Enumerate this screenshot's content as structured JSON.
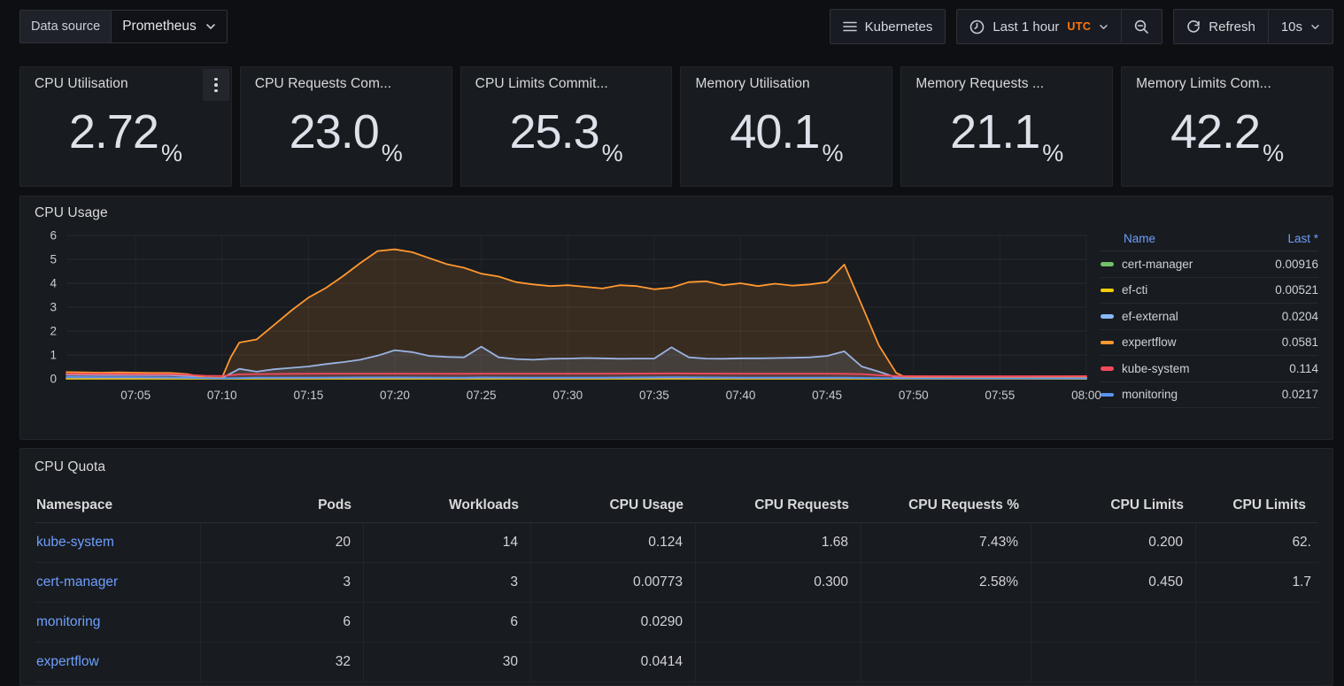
{
  "toolbar": {
    "datasource_label": "Data source",
    "datasource_value": "Prometheus",
    "kubernetes_label": "Kubernetes",
    "time_range_label": "Last 1 hour",
    "timezone_label": "UTC",
    "refresh_label": "Refresh",
    "refresh_interval": "10s"
  },
  "colors": {
    "link_blue": "#6E9FFF",
    "utc_orange": "#FF780A",
    "panel_bg": "#181B1F",
    "page_bg": "#0E0F13"
  },
  "stat_panels": [
    {
      "title": "CPU Utilisation",
      "value": "2.72",
      "unit": "%"
    },
    {
      "title": "CPU Requests Com...",
      "value": "23.0",
      "unit": "%"
    },
    {
      "title": "CPU Limits Commit...",
      "value": "25.3",
      "unit": "%"
    },
    {
      "title": "Memory Utilisation",
      "value": "40.1",
      "unit": "%"
    },
    {
      "title": "Memory Requests ...",
      "value": "21.1",
      "unit": "%"
    },
    {
      "title": "Memory Limits Com...",
      "value": "42.2",
      "unit": "%"
    }
  ],
  "cpu_usage": {
    "title": "CPU Usage",
    "legend": {
      "name_header": "Name",
      "last_header": "Last *"
    }
  },
  "chart_data": {
    "type": "line",
    "title": "CPU Usage",
    "x_axis": {
      "labels": [
        "07:05",
        "07:10",
        "07:15",
        "07:20",
        "07:25",
        "07:30",
        "07:35",
        "07:40",
        "07:45",
        "07:50",
        "07:55",
        "08:00"
      ],
      "start_minute": 1,
      "end_minute": 60
    },
    "y_axis": {
      "min": 0,
      "max": 6,
      "ticks": [
        0,
        1,
        2,
        3,
        4,
        5,
        6
      ]
    },
    "legend_position": "right",
    "series": [
      {
        "name": "cert-manager",
        "color": "#73BF69",
        "last": "0.00916",
        "points": [
          [
            1,
            0.012
          ],
          [
            9,
            0.008
          ],
          [
            20,
            0.01
          ],
          [
            40,
            0.01
          ],
          [
            60,
            0.009
          ]
        ]
      },
      {
        "name": "ef-cti",
        "color": "#F2CC0C",
        "last": "0.00521",
        "points": [
          [
            1,
            0.006
          ],
          [
            30,
            0.005
          ],
          [
            60,
            0.005
          ]
        ]
      },
      {
        "name": "ef-external",
        "color": "#8AB8FF",
        "last": "0.0204",
        "points": [
          [
            1,
            0.17
          ],
          [
            3,
            0.16
          ],
          [
            5,
            0.16
          ],
          [
            7,
            0.15
          ],
          [
            8,
            0.12
          ],
          [
            9,
            0.05
          ],
          [
            10,
            0.03
          ],
          [
            11,
            0.42
          ],
          [
            12,
            0.3
          ],
          [
            13,
            0.4
          ],
          [
            14,
            0.46
          ],
          [
            15,
            0.52
          ],
          [
            16,
            0.62
          ],
          [
            17,
            0.7
          ],
          [
            18,
            0.8
          ],
          [
            19,
            0.97
          ],
          [
            20,
            1.2
          ],
          [
            21,
            1.12
          ],
          [
            22,
            0.96
          ],
          [
            23,
            0.92
          ],
          [
            24,
            0.9
          ],
          [
            25,
            1.35
          ],
          [
            26,
            0.9
          ],
          [
            27,
            0.83
          ],
          [
            28,
            0.8
          ],
          [
            29,
            0.84
          ],
          [
            30,
            0.85
          ],
          [
            31,
            0.87
          ],
          [
            32,
            0.86
          ],
          [
            33,
            0.84
          ],
          [
            34,
            0.85
          ],
          [
            35,
            0.85
          ],
          [
            36,
            1.32
          ],
          [
            37,
            0.9
          ],
          [
            38,
            0.85
          ],
          [
            39,
            0.84
          ],
          [
            40,
            0.86
          ],
          [
            41,
            0.86
          ],
          [
            42,
            0.87
          ],
          [
            43,
            0.88
          ],
          [
            44,
            0.9
          ],
          [
            45,
            0.96
          ],
          [
            46,
            1.15
          ],
          [
            47,
            0.52
          ],
          [
            48,
            0.3
          ],
          [
            49,
            0.06
          ],
          [
            50,
            0.03
          ],
          [
            53,
            0.025
          ],
          [
            56,
            0.022
          ],
          [
            60,
            0.02
          ]
        ]
      },
      {
        "name": "expertflow",
        "color": "#FF9830",
        "last": "0.0581",
        "points": [
          [
            1,
            0.28
          ],
          [
            2,
            0.27
          ],
          [
            3,
            0.26
          ],
          [
            4,
            0.27
          ],
          [
            5,
            0.26
          ],
          [
            6,
            0.25
          ],
          [
            7,
            0.25
          ],
          [
            8,
            0.2
          ],
          [
            9,
            0.06
          ],
          [
            10,
            0.04
          ],
          [
            10.5,
            0.9
          ],
          [
            11,
            1.52
          ],
          [
            12,
            1.65
          ],
          [
            13,
            2.25
          ],
          [
            14,
            2.85
          ],
          [
            15,
            3.4
          ],
          [
            16,
            3.8
          ],
          [
            17,
            4.3
          ],
          [
            18,
            4.85
          ],
          [
            19,
            5.35
          ],
          [
            20,
            5.42
          ],
          [
            21,
            5.3
          ],
          [
            22,
            5.05
          ],
          [
            23,
            4.8
          ],
          [
            24,
            4.65
          ],
          [
            25,
            4.4
          ],
          [
            26,
            4.28
          ],
          [
            27,
            4.05
          ],
          [
            28,
            3.95
          ],
          [
            29,
            3.88
          ],
          [
            30,
            3.92
          ],
          [
            31,
            3.85
          ],
          [
            32,
            3.78
          ],
          [
            33,
            3.92
          ],
          [
            34,
            3.88
          ],
          [
            35,
            3.75
          ],
          [
            36,
            3.82
          ],
          [
            37,
            4.05
          ],
          [
            38,
            4.08
          ],
          [
            39,
            3.92
          ],
          [
            40,
            4.0
          ],
          [
            41,
            3.88
          ],
          [
            42,
            3.98
          ],
          [
            43,
            3.9
          ],
          [
            44,
            3.95
          ],
          [
            45,
            4.05
          ],
          [
            46,
            4.78
          ],
          [
            47,
            3.1
          ],
          [
            48,
            1.4
          ],
          [
            49,
            0.25
          ],
          [
            49.5,
            0.08
          ],
          [
            51,
            0.07
          ],
          [
            53,
            0.07
          ],
          [
            55,
            0.06
          ],
          [
            57,
            0.06
          ],
          [
            60,
            0.058
          ]
        ]
      },
      {
        "name": "kube-system",
        "color": "#F2495C",
        "last": "0.114",
        "points": [
          [
            1,
            0.22
          ],
          [
            3,
            0.21
          ],
          [
            5,
            0.2
          ],
          [
            7,
            0.2
          ],
          [
            8,
            0.17
          ],
          [
            9,
            0.13
          ],
          [
            10,
            0.12
          ],
          [
            11,
            0.19
          ],
          [
            12,
            0.2
          ],
          [
            14,
            0.21
          ],
          [
            16,
            0.22
          ],
          [
            20,
            0.22
          ],
          [
            24,
            0.21
          ],
          [
            25,
            0.22
          ],
          [
            28,
            0.22
          ],
          [
            32,
            0.22
          ],
          [
            36,
            0.23
          ],
          [
            40,
            0.22
          ],
          [
            44,
            0.22
          ],
          [
            45,
            0.22
          ],
          [
            46,
            0.21
          ],
          [
            47,
            0.2
          ],
          [
            48,
            0.15
          ],
          [
            49,
            0.12
          ],
          [
            50,
            0.115
          ],
          [
            53,
            0.11
          ],
          [
            56,
            0.11
          ],
          [
            60,
            0.114
          ]
        ]
      },
      {
        "name": "monitoring",
        "color": "#5794F2",
        "last": "0.0217",
        "points": [
          [
            1,
            0.08
          ],
          [
            3,
            0.07
          ],
          [
            5,
            0.07
          ],
          [
            8,
            0.05
          ],
          [
            9,
            0.03
          ],
          [
            10,
            0.02
          ],
          [
            12,
            0.05
          ],
          [
            15,
            0.05
          ],
          [
            18,
            0.06
          ],
          [
            20,
            0.06
          ],
          [
            24,
            0.05
          ],
          [
            25,
            0.06
          ],
          [
            28,
            0.05
          ],
          [
            32,
            0.05
          ],
          [
            36,
            0.07
          ],
          [
            40,
            0.05
          ],
          [
            44,
            0.05
          ],
          [
            46,
            0.05
          ],
          [
            48,
            0.03
          ],
          [
            50,
            0.02
          ],
          [
            55,
            0.02
          ],
          [
            60,
            0.022
          ]
        ]
      }
    ]
  },
  "cpu_quota": {
    "title": "CPU Quota",
    "columns": [
      "Namespace",
      "Pods",
      "Workloads",
      "CPU Usage",
      "CPU Requests",
      "CPU Requests %",
      "CPU Limits",
      "CPU Limits"
    ],
    "rows": [
      {
        "namespace": "kube-system",
        "cells": [
          "20",
          "14",
          "0.124",
          "1.68",
          "7.43%",
          "0.200",
          "62."
        ]
      },
      {
        "namespace": "cert-manager",
        "cells": [
          "3",
          "3",
          "0.00773",
          "0.300",
          "2.58%",
          "0.450",
          "1.7"
        ]
      },
      {
        "namespace": "monitoring",
        "cells": [
          "6",
          "6",
          "0.0290",
          "",
          "",
          "",
          ""
        ]
      },
      {
        "namespace": "expertflow",
        "cells": [
          "32",
          "30",
          "0.0414",
          "",
          "",
          "",
          ""
        ]
      }
    ]
  }
}
